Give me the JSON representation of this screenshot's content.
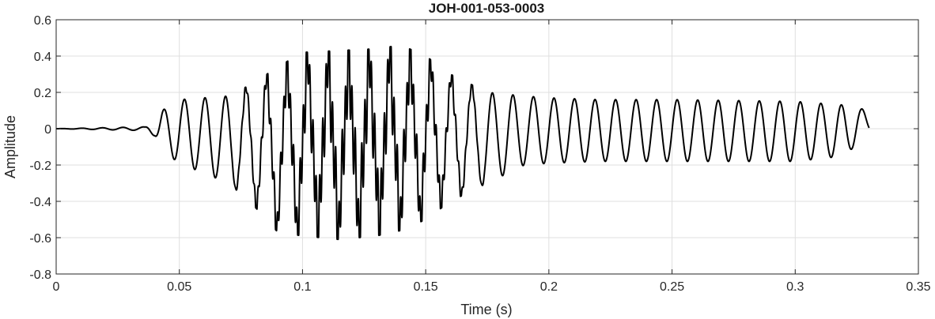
{
  "chart_data": {
    "type": "line",
    "title": "JOH-001-053-0003",
    "xlabel": "Time (s)",
    "ylabel": "Amplitude",
    "xlim": [
      0,
      0.35
    ],
    "ylim": [
      -0.8,
      0.6
    ],
    "grid": true,
    "xticks": [
      0,
      0.05,
      0.1,
      0.15,
      0.2,
      0.25,
      0.3,
      0.35
    ],
    "xtick_labels": [
      "0",
      "0.05",
      "0.1",
      "0.15",
      "0.2",
      "0.25",
      "0.3",
      "0.35"
    ],
    "yticks": [
      -0.8,
      -0.6,
      -0.4,
      -0.2,
      0,
      0.2,
      0.4,
      0.6
    ],
    "ytick_labels": [
      "-0.8",
      "-0.6",
      "-0.4",
      "-0.2",
      "0",
      "0.2",
      "0.4",
      "0.6"
    ],
    "line_color": "#000000",
    "envelope": {
      "description_free": true,
      "t": [
        0,
        0.036,
        0.04,
        0.043,
        0.05,
        0.07,
        0.08,
        0.09,
        0.1,
        0.115,
        0.13,
        0.14,
        0.15,
        0.16,
        0.175,
        0.19,
        0.2,
        0.22,
        0.25,
        0.3,
        0.32,
        0.33
      ],
      "upper": [
        0.0,
        0.01,
        0.04,
        0.1,
        0.16,
        0.18,
        0.25,
        0.34,
        0.42,
        0.43,
        0.44,
        0.46,
        0.4,
        0.3,
        0.2,
        0.18,
        0.17,
        0.16,
        0.16,
        0.15,
        0.13,
        0.1
      ],
      "lower": [
        0.0,
        -0.01,
        -0.04,
        -0.12,
        -0.19,
        -0.3,
        -0.42,
        -0.57,
        -0.59,
        -0.61,
        -0.59,
        -0.56,
        -0.5,
        -0.4,
        -0.3,
        -0.2,
        -0.19,
        -0.18,
        -0.18,
        -0.18,
        -0.15,
        -0.02
      ],
      "carrier_frequency_hz": 120,
      "burst_frequency_hz": 760,
      "burst_window": [
        0.07,
        0.175
      ]
    }
  }
}
